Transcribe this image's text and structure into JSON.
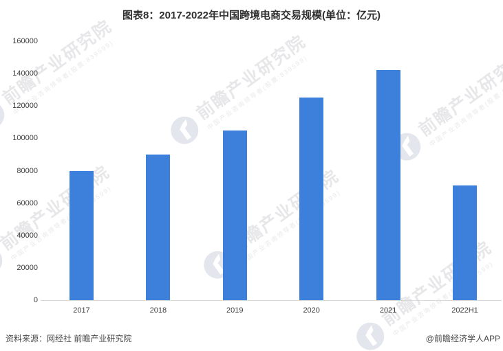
{
  "title": "图表8：2017-2022年中国跨境电商交易规模(单位：亿元)",
  "footer": {
    "source": "资料来源：网经社 前瞻产业研究院",
    "credit": "@前瞻经济学人APP"
  },
  "watermark": {
    "text": "前瞻产业研究院",
    "subtext": "中国产业咨询领导者(股票:839599)",
    "logo": "qianzhan-logo-icon"
  },
  "colors": {
    "bar": "#3C80DC",
    "axis_line": "#d9d9d9",
    "title_text": "#2f2f2f",
    "tick_text": "#3d3d3d",
    "footer_text": "#4a4a4a",
    "watermark_text": "#e7e7e9",
    "watermark_logo": "#e3e6ec"
  },
  "chart_data": {
    "type": "bar",
    "title": "图表8：2017-2022年中国跨境电商交易规模(单位：亿元)",
    "unit": "亿元",
    "categories": [
      "2017",
      "2018",
      "2019",
      "2020",
      "2021",
      "2022H1"
    ],
    "values": [
      80000,
      90000,
      105000,
      125000,
      142000,
      71000
    ],
    "xlabel": "",
    "ylabel": "",
    "ylim": [
      0,
      160000
    ],
    "yticks": [
      0,
      20000,
      40000,
      60000,
      80000,
      100000,
      120000,
      140000,
      160000
    ],
    "grid": false,
    "legend": "none",
    "bar_color": "#3C80DC"
  }
}
